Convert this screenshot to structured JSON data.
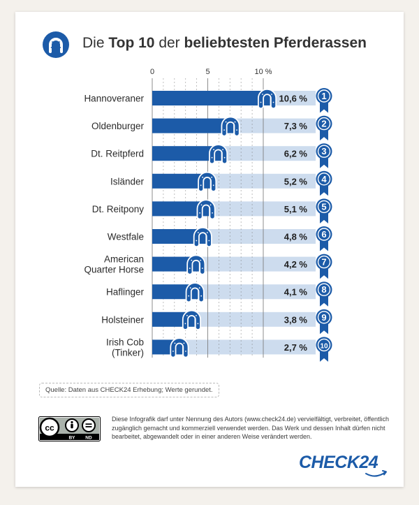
{
  "title": {
    "prefix": "Die ",
    "bold1": "Top 10",
    "middle": " der ",
    "bold2": "beliebtesten Pferderassen"
  },
  "colors": {
    "bar": "#1c5ba8",
    "track": "#cddcee",
    "ribbon": "#1c5ba8",
    "gridline": "#7a7a7a"
  },
  "chart_data": {
    "type": "bar",
    "orientation": "horizontal",
    "categories": [
      "Hannoveraner",
      "Oldenburger",
      "Dt. Reitpferd",
      "Isländer",
      "Dt. Reitpony",
      "Westfale",
      "American Quarter Horse",
      "Haflinger",
      "Holsteiner",
      "Irish Cob (Tinker)"
    ],
    "category_lines": [
      [
        "Hannoveraner"
      ],
      [
        "Oldenburger"
      ],
      [
        "Dt. Reitpferd"
      ],
      [
        "Isländer"
      ],
      [
        "Dt. Reitpony"
      ],
      [
        "Westfale"
      ],
      [
        "American",
        "Quarter Horse"
      ],
      [
        "Haflinger"
      ],
      [
        "Holsteiner"
      ],
      [
        "Irish Cob",
        "(Tinker)"
      ]
    ],
    "values": [
      10.6,
      7.3,
      6.2,
      5.2,
      5.1,
      4.8,
      4.2,
      4.1,
      3.8,
      2.7
    ],
    "value_labels": [
      "10,6 %",
      "7,3 %",
      "6,2 %",
      "5,2 %",
      "5,1 %",
      "4,8 %",
      "4,2 %",
      "4,1 %",
      "3,8 %",
      "2,7 %"
    ],
    "ranks": [
      "1",
      "2",
      "3",
      "4",
      "5",
      "6",
      "7",
      "8",
      "9",
      "10"
    ],
    "xlim": [
      0,
      12
    ],
    "ticks": [
      0,
      5,
      10
    ],
    "tick_labels": [
      "0",
      "5",
      "10 %"
    ],
    "grid": true
  },
  "footer": {
    "source": "Quelle: Daten aus CHECK24 Erhebung; Werte gerundet.",
    "license": "Diese Infografik darf unter Nennung des Autors (www.check24.de) vervielfältigt, verbreitet, öffentlich zugänglich gemacht und kommerziell verwendet werden. Das Werk und dessen Inhalt dürfen nicht bearbeitet, abgewandelt oder in einer anderen Weise verändert werden.",
    "cc_left": "cc",
    "cc_by": "BY",
    "cc_nd": "ND",
    "logo": "CHECK24"
  }
}
